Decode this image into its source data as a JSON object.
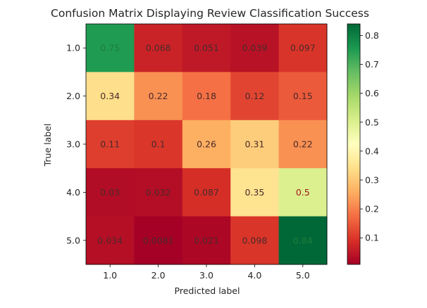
{
  "chart_data": {
    "type": "heatmap",
    "title": "Confusion Matrix Displaying Review Classification Success",
    "xlabel": "Predicted label",
    "ylabel": "True label",
    "x_categories": [
      "1.0",
      "2.0",
      "3.0",
      "4.0",
      "5.0"
    ],
    "y_categories": [
      "1.0",
      "2.0",
      "3.0",
      "4.0",
      "5.0"
    ],
    "values": [
      [
        0.75,
        0.068,
        0.051,
        0.039,
        0.097
      ],
      [
        0.34,
        0.22,
        0.18,
        0.12,
        0.15
      ],
      [
        0.11,
        0.1,
        0.26,
        0.31,
        0.22
      ],
      [
        0.03,
        0.032,
        0.087,
        0.35,
        0.5
      ],
      [
        0.034,
        0.0081,
        0.021,
        0.098,
        0.84
      ]
    ],
    "labels": [
      [
        "0.75",
        "0.068",
        "0.051",
        "0.039",
        "0.097"
      ],
      [
        "0.34",
        "0.22",
        "0.18",
        "0.12",
        "0.15"
      ],
      [
        "0.11",
        "0.1",
        "0.26",
        "0.31",
        "0.22"
      ],
      [
        "0.03",
        "0.032",
        "0.087",
        "0.35",
        "0.5"
      ],
      [
        "0.034",
        "0.0081",
        "0.021",
        "0.098",
        "0.84"
      ]
    ],
    "colormap": "RdYlGn",
    "vmin": 0.0081,
    "vmax": 0.84,
    "colorbar_ticks": [
      "0.1",
      "0.2",
      "0.3",
      "0.4",
      "0.5",
      "0.6",
      "0.7",
      "0.8"
    ],
    "colorbar_tick_values": [
      0.1,
      0.2,
      0.3,
      0.4,
      0.5,
      0.6,
      0.7,
      0.8
    ],
    "grid": false
  }
}
